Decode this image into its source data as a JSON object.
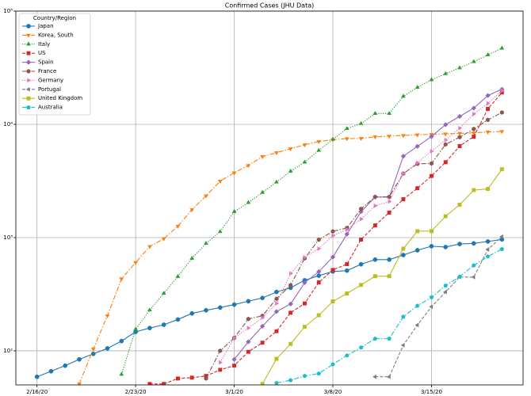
{
  "chart_data": {
    "type": "line",
    "title": "Confirmed Cases (JHU Data)",
    "legend_title": "Country/Region",
    "legend": "upper left",
    "log_scale": true,
    "grid": true,
    "x": [
      "2/16/20",
      "2/17/20",
      "2/18/20",
      "2/19/20",
      "2/20/20",
      "2/21/20",
      "2/22/20",
      "2/23/20",
      "2/24/20",
      "2/25/20",
      "2/26/20",
      "2/27/20",
      "2/28/20",
      "2/29/20",
      "3/1/20",
      "3/2/20",
      "3/3/20",
      "3/4/20",
      "3/5/20",
      "3/6/20",
      "3/7/20",
      "3/8/20",
      "3/9/20",
      "3/10/20",
      "3/11/20",
      "3/12/20",
      "3/13/20",
      "3/14/20",
      "3/15/20",
      "3/16/20",
      "3/17/20",
      "3/18/20",
      "3/19/20",
      "3/20/20"
    ],
    "xticks": [
      "2/16/20",
      "2/23/20",
      "3/1/20",
      "3/8/20",
      "3/15/20"
    ],
    "ylim": [
      50,
      100000
    ],
    "yticks": [
      {
        "value": 100,
        "label": "10²"
      },
      {
        "value": 1000,
        "label": "10³"
      },
      {
        "value": 10000,
        "label": "10⁴"
      },
      {
        "value": 100000,
        "label": "10⁵"
      }
    ],
    "series": [
      {
        "name": "Japan",
        "color": "#1f77b4",
        "marker": "circle",
        "linestyle": "solid",
        "values": [
          59,
          66,
          74,
          84,
          94,
          105,
          122,
          147,
          159,
          170,
          189,
          214,
          228,
          241,
          256,
          274,
          293,
          331,
          360,
          420,
          461,
          502,
          511,
          581,
          639,
          639,
          701,
          773,
          839,
          825,
          878,
          889,
          924,
          963
        ]
      },
      {
        "name": "Korea, South",
        "color": "#ff7f0e",
        "marker": "triangle-down",
        "linestyle": "dashdot",
        "values": [
          null,
          null,
          null,
          51,
          104,
          204,
          433,
          602,
          833,
          977,
          1261,
          1766,
          2337,
          3150,
          3736,
          4335,
          5186,
          5621,
          6088,
          6593,
          7041,
          7314,
          7478,
          7513,
          7755,
          7869,
          7979,
          8086,
          8162,
          8236,
          8320,
          8413,
          8565,
          8652
        ]
      },
      {
        "name": "Italy",
        "color": "#2ca02c",
        "marker": "triangle-up",
        "linestyle": "dotted",
        "values": [
          null,
          null,
          null,
          null,
          null,
          null,
          62,
          155,
          229,
          322,
          453,
          655,
          888,
          1128,
          1694,
          2036,
          2502,
          3089,
          3858,
          4636,
          5883,
          7375,
          9172,
          10149,
          12462,
          12462,
          17660,
          21157,
          24747,
          27980,
          31506,
          35713,
          41035,
          47021
        ]
      },
      {
        "name": "US",
        "color": "#d62728",
        "marker": "square",
        "linestyle": "dashed",
        "values": [
          null,
          null,
          null,
          null,
          null,
          null,
          null,
          null,
          51,
          51,
          57,
          58,
          60,
          68,
          74,
          98,
          118,
          149,
          217,
          262,
          402,
          518,
          583,
          959,
          1281,
          1663,
          2179,
          2726,
          3499,
          4632,
          6421,
          7786,
          13680,
          19101
        ]
      },
      {
        "name": "Spain",
        "color": "#9467bd",
        "marker": "diamond",
        "linestyle": "solid",
        "values": [
          null,
          null,
          null,
          null,
          null,
          null,
          null,
          null,
          null,
          null,
          null,
          null,
          null,
          null,
          84,
          120,
          165,
          222,
          259,
          400,
          500,
          673,
          1073,
          1695,
          2277,
          2277,
          5232,
          6391,
          7798,
          9942,
          11748,
          13910,
          17963,
          20410
        ]
      },
      {
        "name": "France",
        "color": "#8c564b",
        "marker": "hexagon",
        "linestyle": "dashdot",
        "values": [
          null,
          null,
          null,
          null,
          null,
          null,
          null,
          null,
          null,
          null,
          null,
          null,
          57,
          100,
          130,
          191,
          204,
          288,
          380,
          656,
          957,
          1134,
          1217,
          1792,
          2289,
          2289,
          3672,
          4480,
          4513,
          6650,
          7699,
          9105,
          10947,
          12726
        ]
      },
      {
        "name": "Germany",
        "color": "#e377c2",
        "marker": "triangle-right",
        "linestyle": "dotted",
        "values": [
          null,
          null,
          null,
          null,
          null,
          null,
          null,
          null,
          null,
          null,
          null,
          null,
          null,
          79,
          130,
          159,
          196,
          262,
          482,
          670,
          799,
          1040,
          1176,
          1457,
          1908,
          2078,
          3675,
          4585,
          5795,
          7272,
          9257,
          12327,
          15320,
          19848
        ]
      },
      {
        "name": "Portugal",
        "color": "#7f7f7f",
        "marker": "triangle-left",
        "linestyle": "dashed",
        "values": [
          null,
          null,
          null,
          null,
          null,
          null,
          null,
          null,
          null,
          null,
          null,
          null,
          null,
          null,
          null,
          null,
          null,
          null,
          null,
          null,
          null,
          null,
          null,
          null,
          59,
          59,
          112,
          169,
          245,
          331,
          448,
          448,
          785,
          1020
        ]
      },
      {
        "name": "United Kingdom",
        "color": "#bcbd22",
        "marker": "square",
        "linestyle": "solid",
        "values": [
          null,
          null,
          null,
          null,
          null,
          null,
          null,
          null,
          null,
          null,
          null,
          null,
          null,
          null,
          null,
          null,
          51,
          85,
          115,
          163,
          206,
          273,
          321,
          382,
          456,
          456,
          798,
          1140,
          1140,
          1543,
          1950,
          2626,
          2689,
          4014
        ]
      },
      {
        "name": "Australia",
        "color": "#17becf",
        "marker": "pentagon",
        "linestyle": "dashdot",
        "values": [
          null,
          null,
          null,
          null,
          null,
          null,
          null,
          null,
          null,
          null,
          null,
          null,
          null,
          null,
          null,
          null,
          null,
          52,
          55,
          60,
          63,
          76,
          91,
          107,
          128,
          128,
          200,
          250,
          297,
          377,
          452,
          568,
          681,
          791
        ]
      }
    ]
  }
}
